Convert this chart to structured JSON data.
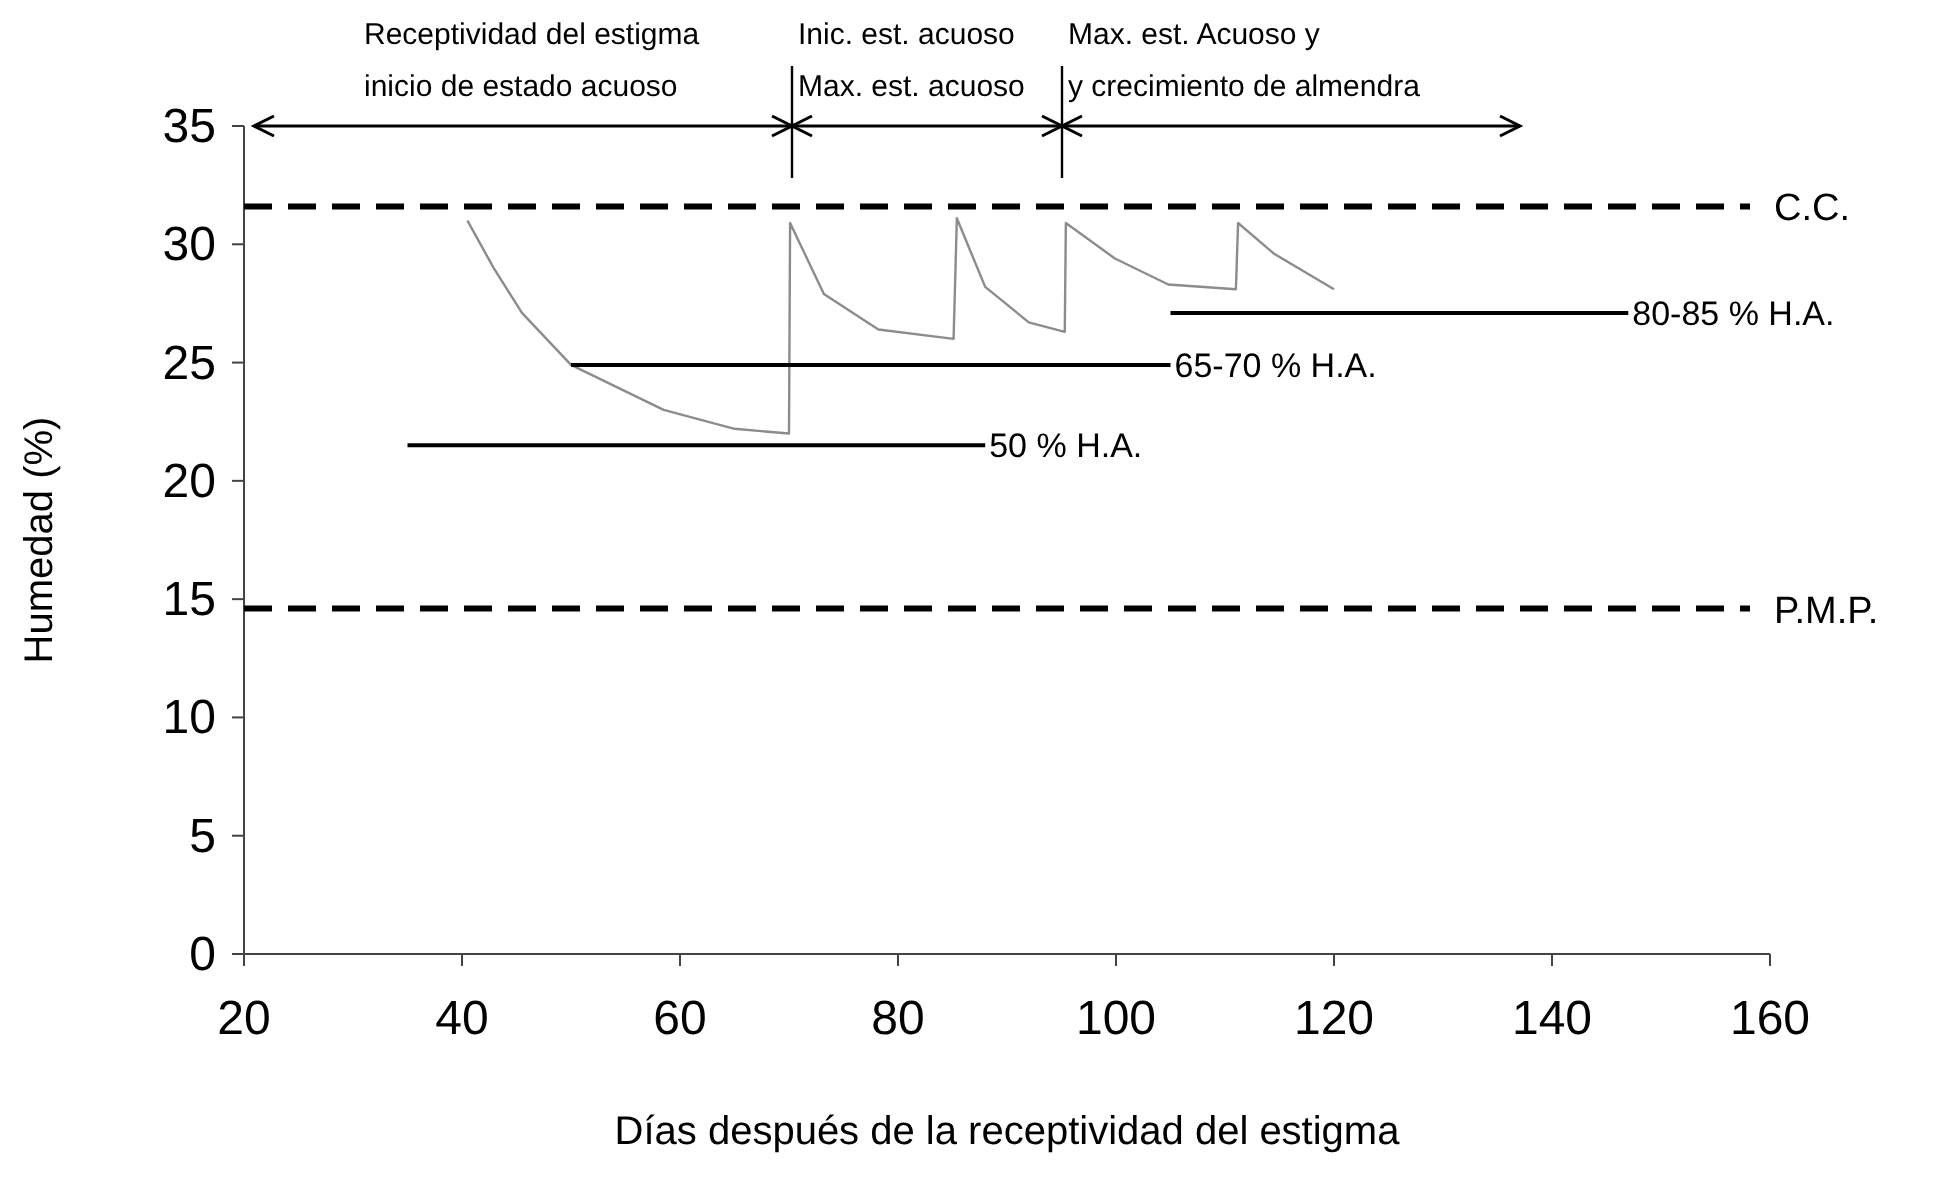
{
  "chart_data": {
    "type": "line",
    "xlabel": "Días después de la receptividad del estigma",
    "ylabel": "Humedad (%)",
    "xlim": [
      20,
      160
    ],
    "ylim": [
      0,
      35
    ],
    "xticks": [
      20,
      40,
      60,
      80,
      100,
      120,
      140,
      160
    ],
    "yticks": [
      0,
      5,
      10,
      15,
      20,
      25,
      30,
      35
    ],
    "grid": false,
    "legend": false,
    "marker": "none",
    "series": [
      {
        "color": "#8c8c8c",
        "x": [
          40.5,
          42.9,
          45.5,
          50,
          58.5,
          65,
          70,
          70.1,
          73.2,
          78.2,
          85.1,
          85.4,
          88,
          92,
          95.3,
          95.4,
          99.9,
          104.8,
          111,
          111.2,
          114.5,
          120
        ],
        "values": [
          31,
          29,
          27.1,
          24.9,
          23,
          22.2,
          22,
          30.9,
          27.9,
          26.4,
          26,
          31.1,
          28.2,
          26.7,
          26.3,
          30.9,
          29.4,
          28.3,
          28.1,
          30.9,
          29.6,
          28.1
        ]
      },
      {
        "name": "50 % H.A.",
        "color": "#000000",
        "x": [
          35,
          88
        ],
        "values": [
          21.5,
          21.5
        ]
      },
      {
        "name": "65-70 % H.A.",
        "color": "#000000",
        "x": [
          50,
          105
        ],
        "values": [
          24.9,
          24.9
        ]
      },
      {
        "name": "80-85 % H.A.",
        "color": "#000000",
        "x": [
          105,
          147
        ],
        "values": [
          27.1,
          27.1
        ]
      }
    ],
    "ref_lines": [
      {
        "axis": "y",
        "value": 31.6,
        "label": "C.C.",
        "line_style": "dashed",
        "color": "#000000"
      },
      {
        "axis": "y",
        "value": 14.6,
        "label": "P.M.P.",
        "line_style": "dashed",
        "color": "#000000"
      }
    ],
    "annotations": [
      "Receptividad del estigma\ninicio de estado acuoso",
      "Inic. est. acuoso\nMax. est. acuoso",
      "Max. est. Acuoso y\ny crecimiento de almendra"
    ]
  }
}
